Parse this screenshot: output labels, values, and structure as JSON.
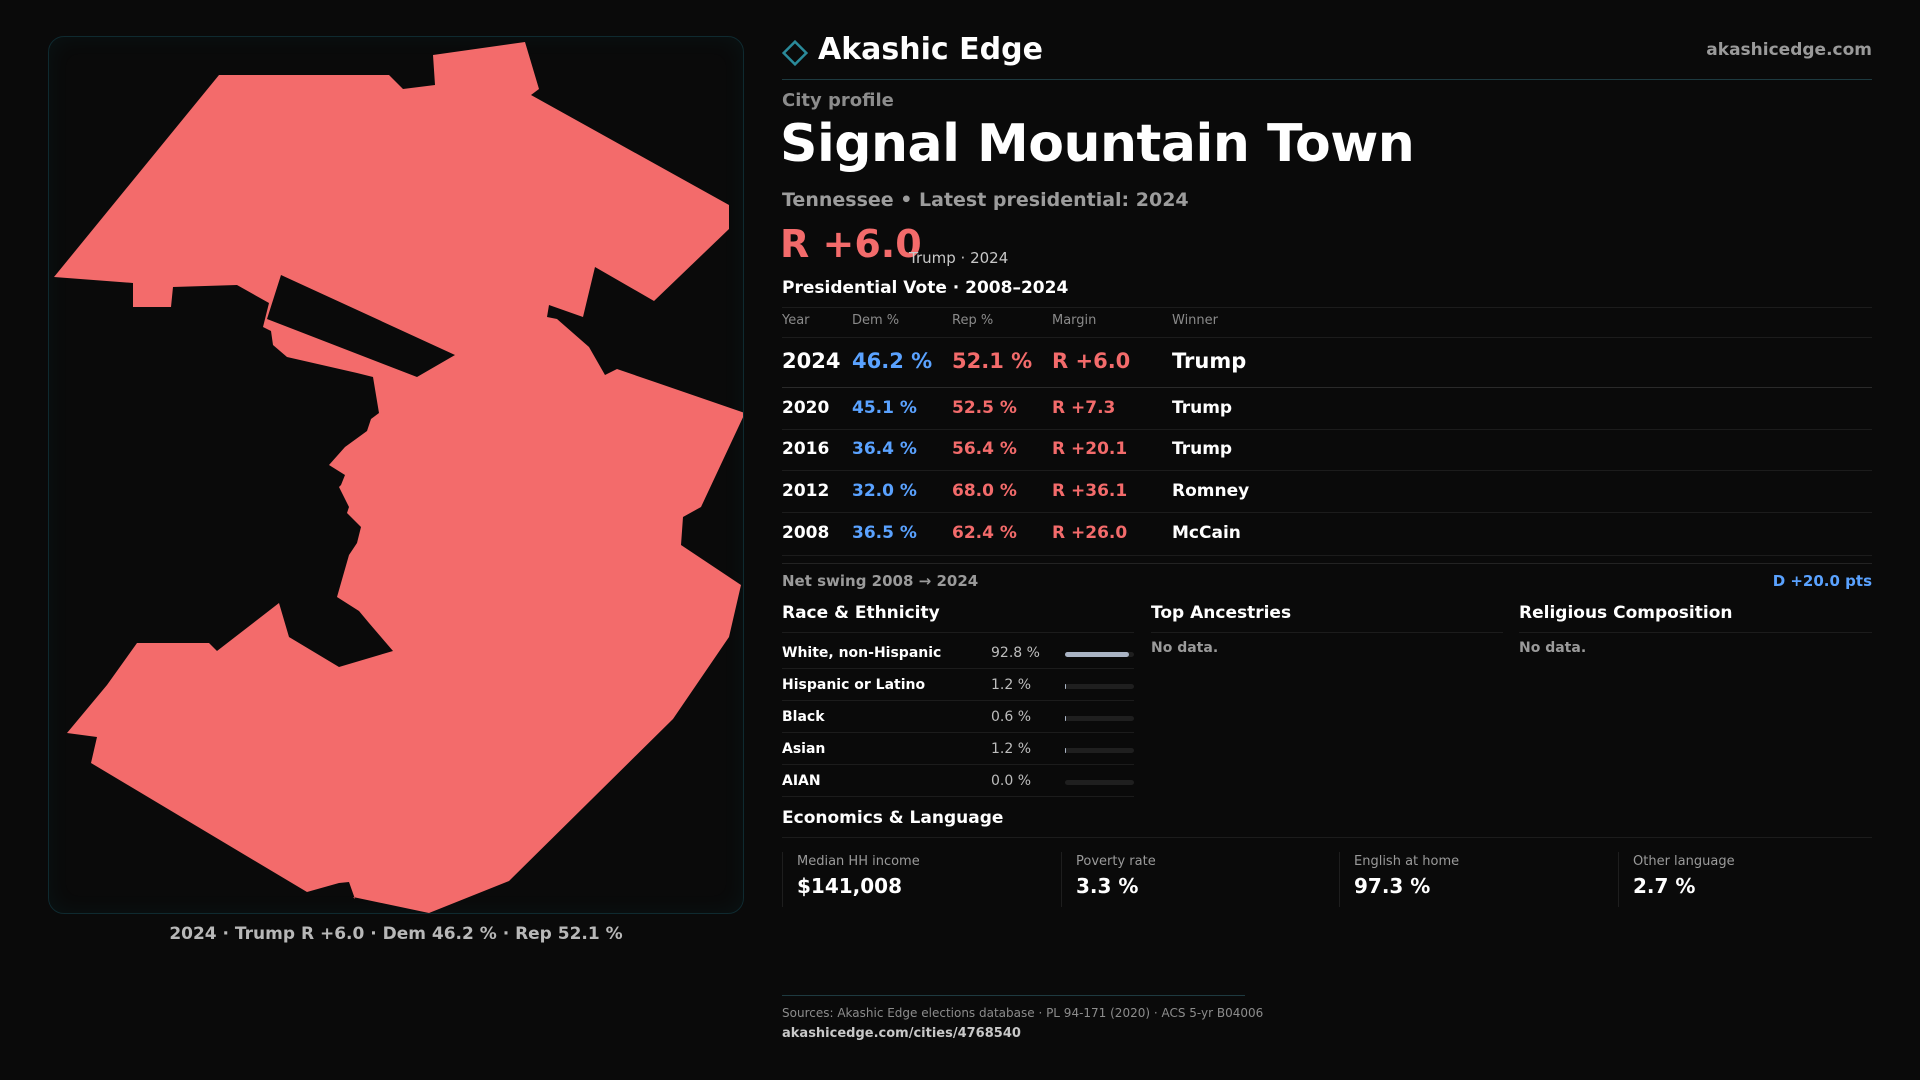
{
  "brand": {
    "name": "Akashic Edge",
    "url": "akashicedge.com"
  },
  "profile": {
    "eyebrow": "City profile",
    "title": "Signal Mountain Town",
    "subtitle": "Tennessee • Latest presidential: 2024",
    "margin": "R +6.0",
    "margin_note": "Trump · 2024"
  },
  "map": {
    "fill_color": "#f36b6b",
    "caption": "2024 · Trump R +6.0 · Dem 46.2 % · Rep 52.1 %"
  },
  "vote_table": {
    "title": "Presidential Vote · 2008–2024",
    "columns": [
      "Year",
      "Dem %",
      "Rep %",
      "Margin",
      "Winner"
    ],
    "rows": [
      {
        "year": "2024",
        "dem": "46.2 %",
        "rep": "52.1 %",
        "margin": "R +6.0",
        "winner": "Trump"
      },
      {
        "year": "2020",
        "dem": "45.1 %",
        "rep": "52.5 %",
        "margin": "R +7.3",
        "winner": "Trump"
      },
      {
        "year": "2016",
        "dem": "36.4 %",
        "rep": "56.4 %",
        "margin": "R +20.1",
        "winner": "Trump"
      },
      {
        "year": "2012",
        "dem": "32.0 %",
        "rep": "68.0 %",
        "margin": "R +36.1",
        "winner": "Romney"
      },
      {
        "year": "2008",
        "dem": "36.5 %",
        "rep": "62.4 %",
        "margin": "R +26.0",
        "winner": "McCain"
      }
    ]
  },
  "swing": {
    "label": "Net swing 2008 → 2024",
    "value": "D +20.0 pts"
  },
  "race": {
    "title": "Race & Ethnicity",
    "rows": [
      {
        "label": "White, non-Hispanic",
        "value": "92.8 %",
        "share": 0.928
      },
      {
        "label": "Hispanic or Latino",
        "value": "1.2 %",
        "share": 0.012
      },
      {
        "label": "Black",
        "value": "0.6 %",
        "share": 0.006
      },
      {
        "label": "Asian",
        "value": "1.2 %",
        "share": 0.012
      },
      {
        "label": "AIAN",
        "value": "0.0 %",
        "share": 0.0
      }
    ]
  },
  "ancestries": {
    "title": "Top Ancestries",
    "empty": "No data."
  },
  "religion": {
    "title": "Religious Composition",
    "empty": "No data."
  },
  "economics": {
    "title": "Economics & Language",
    "cells": [
      {
        "label": "Median HH income",
        "value": "$141,008"
      },
      {
        "label": "Poverty rate",
        "value": "3.3 %"
      },
      {
        "label": "English at home",
        "value": "97.3 %"
      },
      {
        "label": "Other language",
        "value": "2.7 %"
      }
    ]
  },
  "footer": {
    "sources": "Sources: Akashic Edge elections database · PL 94-171 (2020) · ACS 5-yr B04006",
    "url": "akashicedge.com/cities/4768540"
  },
  "colors": {
    "accent": "#2a8a9a",
    "dem": "#5aa2ff",
    "rep": "#f36b6b"
  }
}
